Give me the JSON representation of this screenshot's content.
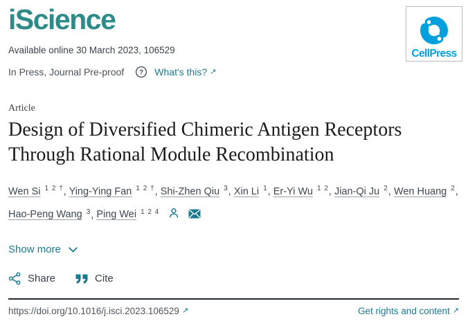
{
  "colors": {
    "brand_teal": "#2E8B8A",
    "link_teal": "#1A7A90",
    "cellpress_blue": "#00A0DF",
    "body_text": "#3E4852",
    "title_text": "#1B1B1B",
    "divider": "#24292E"
  },
  "header": {
    "journal_title": "iScience",
    "available_online": "Available online 30 March 2023, 106529",
    "in_press_label": "In Press, Journal Pre-proof",
    "whats_this_label": "What's this?",
    "publisher": "CellPress"
  },
  "article": {
    "type": "Article",
    "title": "Design of Diversified Chimeric Antigen Receptors Through Rational Module Recombination"
  },
  "authors": [
    {
      "name": "Wen Si",
      "sup": "1 2 †"
    },
    {
      "name": "Ying-Ying Fan",
      "sup": "1 2 †"
    },
    {
      "name": "Shi-Zhen Qiu",
      "sup": "3"
    },
    {
      "name": "Xin Li",
      "sup": "1"
    },
    {
      "name": "Er-Yi Wu",
      "sup": "1 2"
    },
    {
      "name": "Jian-Qi Ju",
      "sup": "2"
    },
    {
      "name": "Wen Huang",
      "sup": "2"
    },
    {
      "name": "Hao-Peng Wang",
      "sup": "3"
    },
    {
      "name": "Ping Wei",
      "sup": "1 2 4"
    }
  ],
  "icons": {
    "author_info": "person-icon",
    "corresponding_email": "envelope-icon",
    "external_link": "↗"
  },
  "actions": {
    "show_more": "Show more",
    "share": "Share",
    "cite": "Cite"
  },
  "footer": {
    "doi": "https://doi.org/10.1016/j.isci.2023.106529",
    "rights": "Get rights and content"
  }
}
